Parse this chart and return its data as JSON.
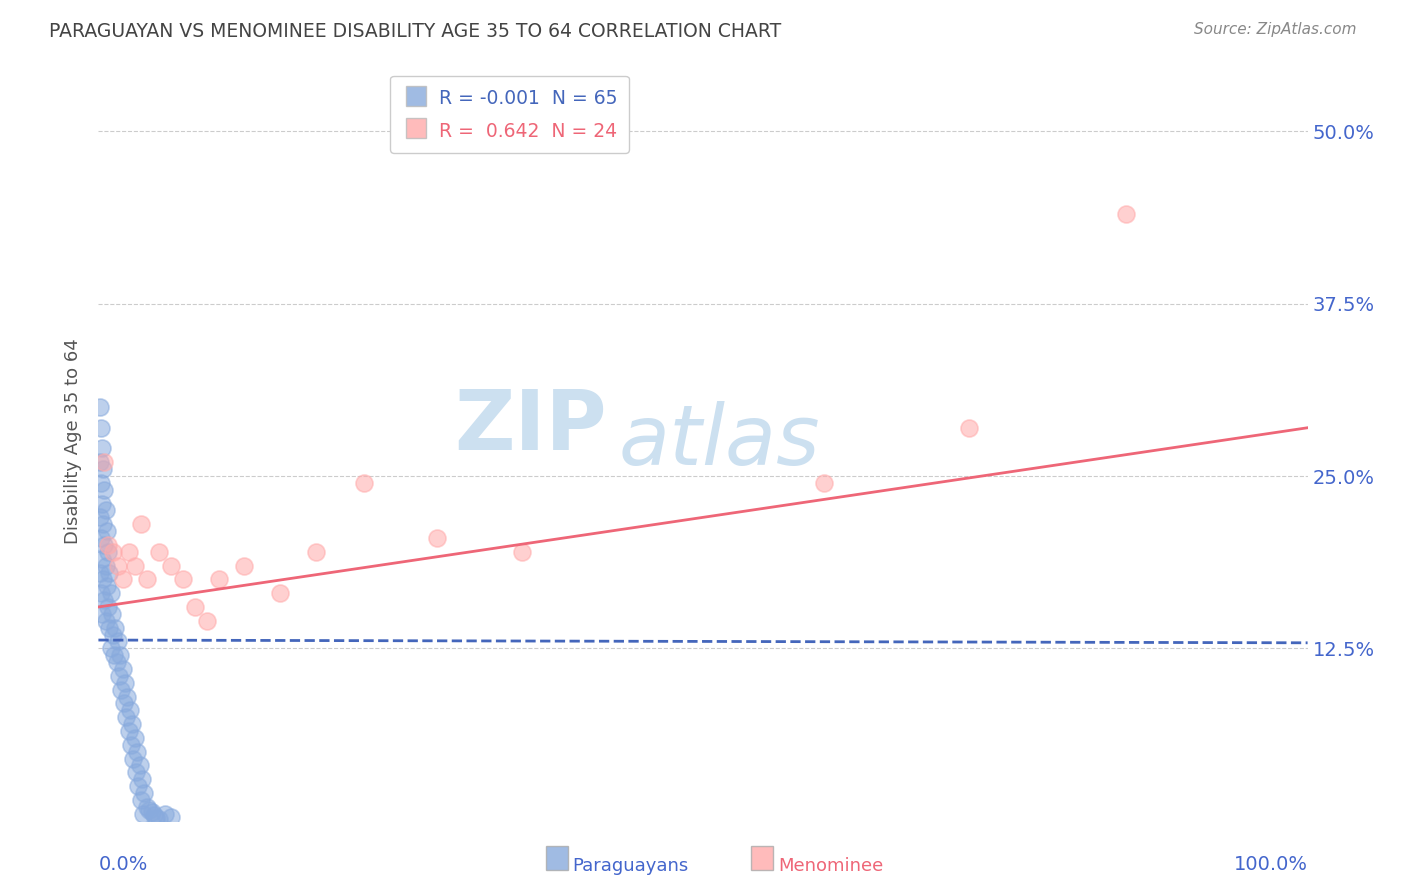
{
  "title": "PARAGUAYAN VS MENOMINEE DISABILITY AGE 35 TO 64 CORRELATION CHART",
  "source_text": "Source: ZipAtlas.com",
  "ylabel": "Disability Age 35 to 64",
  "xlim": [
    0.0,
    1.0
  ],
  "ylim": [
    0.0,
    0.55
  ],
  "ytick_positions": [
    0.125,
    0.25,
    0.375,
    0.5
  ],
  "ytick_labels": [
    "12.5%",
    "25.0%",
    "37.5%",
    "50.0%"
  ],
  "paraguayan_R": -0.001,
  "paraguayan_N": 65,
  "menominee_R": 0.642,
  "menominee_N": 24,
  "blue_color": "#88aadd",
  "pink_color": "#ffaaaa",
  "blue_line_color": "#4466bb",
  "pink_line_color": "#ee6677",
  "title_color": "#444444",
  "source_color": "#888888",
  "axis_label_color": "#555555",
  "tick_label_color": "#4466cc",
  "grid_color": "#cccccc",
  "background_color": "#ffffff",
  "watermark_color": "#cce0f0",
  "paraguayan_x": [
    0.001,
    0.001,
    0.001,
    0.001,
    0.002,
    0.002,
    0.002,
    0.002,
    0.003,
    0.003,
    0.003,
    0.003,
    0.004,
    0.004,
    0.004,
    0.005,
    0.005,
    0.005,
    0.006,
    0.006,
    0.006,
    0.007,
    0.007,
    0.008,
    0.008,
    0.009,
    0.009,
    0.01,
    0.01,
    0.011,
    0.012,
    0.013,
    0.014,
    0.015,
    0.016,
    0.017,
    0.018,
    0.019,
    0.02,
    0.021,
    0.022,
    0.023,
    0.024,
    0.025,
    0.026,
    0.027,
    0.028,
    0.029,
    0.03,
    0.031,
    0.032,
    0.033,
    0.034,
    0.035,
    0.036,
    0.037,
    0.038,
    0.04,
    0.042,
    0.044,
    0.046,
    0.048,
    0.05,
    0.055,
    0.06
  ],
  "paraguayan_y": [
    0.3,
    0.26,
    0.22,
    0.18,
    0.285,
    0.245,
    0.205,
    0.165,
    0.27,
    0.23,
    0.19,
    0.15,
    0.255,
    0.215,
    0.175,
    0.24,
    0.2,
    0.16,
    0.225,
    0.185,
    0.145,
    0.21,
    0.17,
    0.195,
    0.155,
    0.18,
    0.14,
    0.165,
    0.125,
    0.15,
    0.135,
    0.12,
    0.14,
    0.115,
    0.13,
    0.105,
    0.12,
    0.095,
    0.11,
    0.085,
    0.1,
    0.075,
    0.09,
    0.065,
    0.08,
    0.055,
    0.07,
    0.045,
    0.06,
    0.035,
    0.05,
    0.025,
    0.04,
    0.015,
    0.03,
    0.005,
    0.02,
    0.01,
    0.008,
    0.006,
    0.004,
    0.002,
    0.001,
    0.005,
    0.003
  ],
  "menominee_x": [
    0.005,
    0.008,
    0.012,
    0.016,
    0.02,
    0.025,
    0.03,
    0.035,
    0.04,
    0.05,
    0.06,
    0.07,
    0.08,
    0.09,
    0.1,
    0.12,
    0.15,
    0.18,
    0.22,
    0.28,
    0.35,
    0.6,
    0.72,
    0.85
  ],
  "menominee_y": [
    0.26,
    0.2,
    0.195,
    0.185,
    0.175,
    0.195,
    0.185,
    0.215,
    0.175,
    0.195,
    0.185,
    0.175,
    0.155,
    0.145,
    0.175,
    0.185,
    0.165,
    0.195,
    0.245,
    0.205,
    0.195,
    0.245,
    0.285,
    0.44
  ],
  "blue_trend_x": [
    0.0,
    1.0
  ],
  "blue_trend_y": [
    0.131,
    0.129
  ],
  "pink_trend_x": [
    0.0,
    1.0
  ],
  "pink_trend_y": [
    0.155,
    0.285
  ]
}
